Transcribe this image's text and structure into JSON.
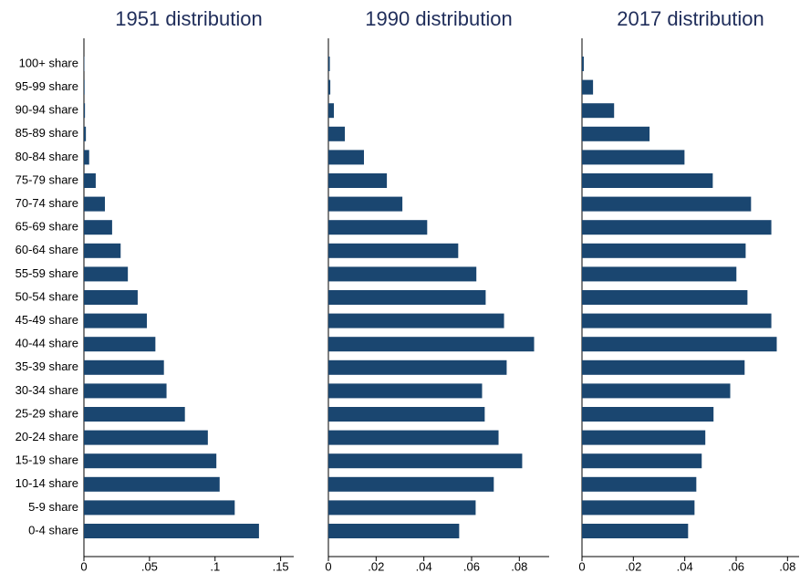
{
  "chart_data": [
    {
      "type": "hbar",
      "title": "1951 distribution",
      "color": "#1a4670",
      "categories": [
        "100+ share",
        "95-99 share",
        "90-94 share",
        "85-89 share",
        "80-84 share",
        "75-79 share",
        "70-74 share",
        "65-69 share",
        "60-64 share",
        "55-59 share",
        "50-54 share",
        "45-49 share",
        "40-44 share",
        "35-39 share",
        "30-34 share",
        "25-29 share",
        "20-24 share",
        "15-19 share",
        "10-14 share",
        "5-9 share",
        "0-4 share"
      ],
      "values": [
        0.0003,
        0.0005,
        0.0008,
        0.0015,
        0.004,
        0.009,
        0.016,
        0.0215,
        0.028,
        0.0335,
        0.041,
        0.048,
        0.0545,
        0.061,
        0.063,
        0.077,
        0.0945,
        0.101,
        0.1035,
        0.115,
        0.1335
      ],
      "xlim": [
        0,
        0.16
      ],
      "xticks": [
        0,
        {
          "value": 0.05,
          "label": ".05"
        },
        {
          "value": 0.1,
          "label": ".1"
        },
        {
          "value": 0.15,
          "label": ".15"
        }
      ]
    },
    {
      "type": "hbar",
      "title": "1990 distribution",
      "color": "#1a4670",
      "values": [
        0.0006,
        0.0008,
        0.0023,
        0.0069,
        0.0149,
        0.0245,
        0.031,
        0.0414,
        0.0544,
        0.062,
        0.0659,
        0.0736,
        0.0862,
        0.0747,
        0.0644,
        0.0655,
        0.0713,
        0.0812,
        0.0693,
        0.0617,
        0.0548
      ],
      "xlim": [
        0,
        0.0925
      ],
      "xticks": [
        0,
        {
          "value": 0.02,
          "label": ".02"
        },
        {
          "value": 0.04,
          "label": ".04"
        },
        {
          "value": 0.06,
          "label": ".06"
        },
        {
          "value": 0.08,
          "label": ".08"
        }
      ]
    },
    {
      "type": "hbar",
      "title": "2017 distribution",
      "color": "#1a4670",
      "values": [
        0.0007,
        0.0043,
        0.0125,
        0.0263,
        0.0399,
        0.0509,
        0.0658,
        0.0737,
        0.0637,
        0.0601,
        0.0644,
        0.0737,
        0.0758,
        0.0633,
        0.0577,
        0.0512,
        0.048,
        0.0466,
        0.0445,
        0.0438,
        0.0413
      ],
      "xlim": [
        0,
        0.0845
      ],
      "xticks": [
        0,
        {
          "value": 0.02,
          "label": ".02"
        },
        {
          "value": 0.04,
          "label": ".04"
        },
        {
          "value": 0.06,
          "label": ".06"
        },
        {
          "value": 0.08,
          "label": ".08"
        }
      ]
    }
  ]
}
